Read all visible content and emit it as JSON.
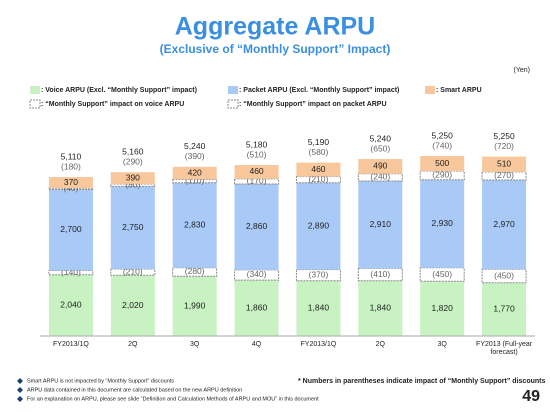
{
  "chart_data": {
    "type": "stacked-bar",
    "title": "Aggregate ARPU",
    "subtitle": "(Exclusive of “Monthly Support” Impact)",
    "unit": "(Yen)",
    "categories": [
      "FY2013/1Q",
      "2Q",
      "3Q",
      "4Q",
      "FY2013/1Q",
      "2Q",
      "3Q",
      "FY2013 (Full-year forecast)"
    ],
    "series": [
      {
        "name": ": Voice ARPU  (Excl. “Monthly Support” impact)",
        "color": "#c8f2c2",
        "values": [
          2040,
          2020,
          1990,
          1860,
          1840,
          1840,
          1820,
          1770
        ],
        "value_labels": [
          "2,040",
          "2,020",
          "1,990",
          "1,860",
          "1,840",
          "1,840",
          "1,820",
          "1,770"
        ]
      },
      {
        "name": ": Packet ARPU  (Excl. “Monthly Support” impact)",
        "color": "#a9c9f7",
        "values": [
          2700,
          2750,
          2830,
          2860,
          2890,
          2910,
          2930,
          2970
        ],
        "value_labels": [
          "2,700",
          "2,750",
          "2,830",
          "2,860",
          "2,890",
          "2,910",
          "2,930",
          "2,970"
        ]
      },
      {
        "name": ": Smart ARPU",
        "color": "#f8c79c",
        "values": [
          370,
          390,
          420,
          460,
          460,
          490,
          500,
          510
        ]
      },
      {
        "name": ": “Monthly Support” impact on voice ARPU",
        "color": "#ffffff",
        "values": [
          -140,
          -210,
          -280,
          -340,
          -370,
          -410,
          -450,
          -450
        ],
        "value_labels": [
          "(140)",
          "(210)",
          "(280)",
          "(340)",
          "(370)",
          "(410)",
          "(450)",
          "(450)"
        ]
      },
      {
        "name": ": “Monthly Support” impact on packet ARPU",
        "color": "#ffffff",
        "values": [
          -40,
          -80,
          -110,
          -170,
          -210,
          -240,
          -290,
          -270
        ],
        "value_labels": [
          "(40)",
          "(80)",
          "(110)",
          "(170)",
          "(210)",
          "(240)",
          "(290)",
          "(270)"
        ]
      }
    ],
    "totals": {
      "values": [
        5110,
        5160,
        5240,
        5180,
        5190,
        5240,
        5250,
        5250
      ],
      "value_labels": [
        "5,110",
        "5,160",
        "5,240",
        "5,180",
        "5,190",
        "5,240",
        "5,250",
        "5,250"
      ]
    },
    "total_impact": {
      "values": [
        -180,
        -290,
        -390,
        -510,
        -580,
        -650,
        -740,
        -720
      ],
      "value_labels": [
        "(180)",
        "(290)",
        "(390)",
        "(510)",
        "(580)",
        "(650)",
        "(740)",
        "(720)"
      ]
    },
    "note": "* Numbers in parentheses indicate impact of “Monthly Support” discounts",
    "footnotes": [
      "Smart ARPU is not impacted by “Monthly Support” discounts",
      "ARPU data contained in this document are calculated based on the new ARPU definition",
      "For an explanation  on ARPU, please see slide “Definition and Calculation Methods of ARPU and MOU” in this document"
    ],
    "page_number": "49"
  }
}
